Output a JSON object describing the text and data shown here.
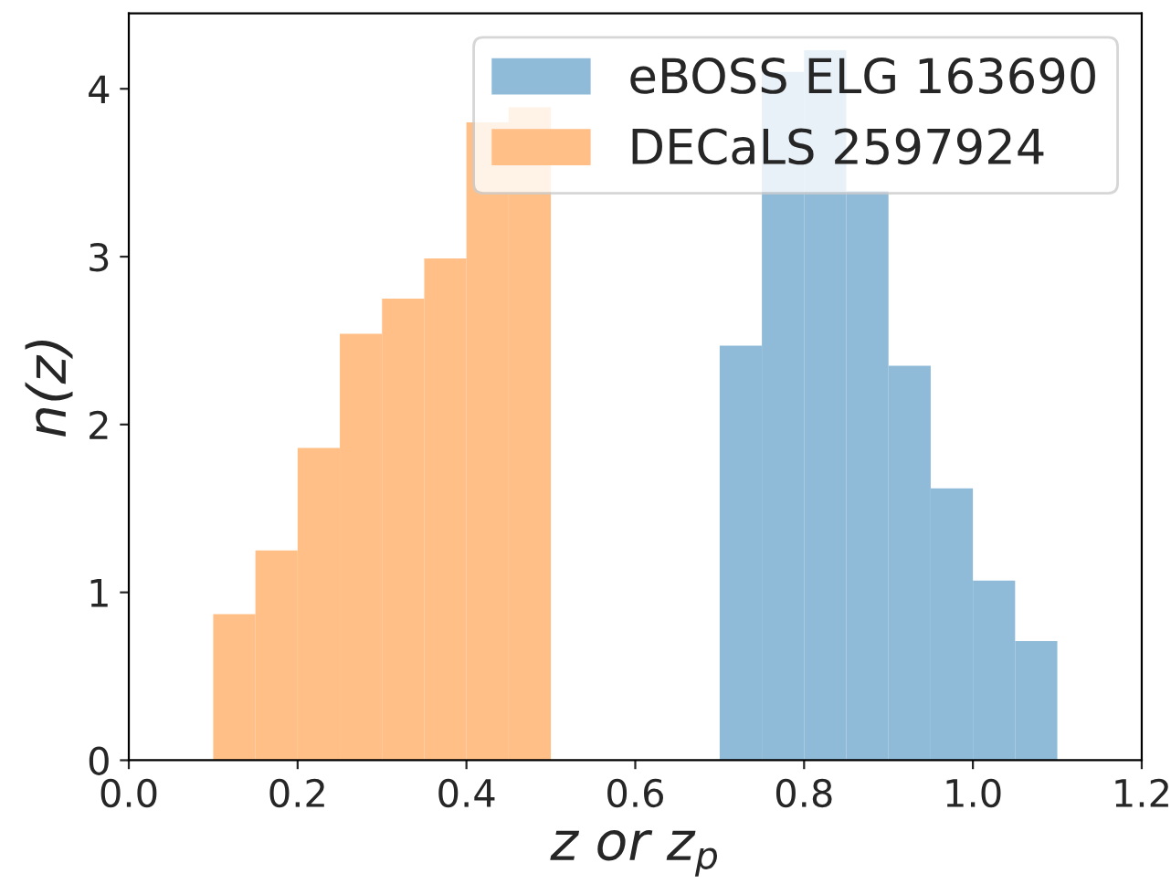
{
  "chart_data": {
    "type": "histogram",
    "xlabel": "z or z$_{p}$",
    "ylabel": "n(z)",
    "bins": [
      0.1,
      0.15,
      0.2,
      0.25,
      0.3,
      0.35,
      0.4,
      0.45,
      0.5,
      0.55,
      0.6,
      0.65,
      0.7,
      0.75,
      0.8,
      0.85,
      0.9,
      0.95,
      1.0,
      1.05,
      1.1
    ],
    "series": [
      {
        "name": "eBOSS ELG 163690",
        "color": "#8fbbd9",
        "values": [
          null,
          null,
          null,
          null,
          null,
          null,
          null,
          null,
          null,
          null,
          null,
          null,
          2.47,
          4.1,
          4.23,
          3.39,
          2.35,
          1.62,
          1.07,
          0.71
        ]
      },
      {
        "name": "DECaLS 2597924",
        "color": "#ffbf86",
        "values": [
          0.87,
          1.25,
          1.86,
          2.54,
          2.75,
          2.99,
          3.8,
          3.89,
          null,
          null,
          null,
          null,
          null,
          null,
          null,
          null,
          null,
          null,
          null,
          null
        ]
      }
    ],
    "xlim": [
      0,
      1.2
    ],
    "xticks": [
      {
        "value": 0,
        "label": "0.0"
      },
      {
        "value": 0.2,
        "label": "0.2"
      },
      {
        "value": 0.4,
        "label": "0.4"
      },
      {
        "value": 0.6,
        "label": "0.6"
      },
      {
        "value": 0.8,
        "label": "0.8"
      },
      {
        "value": 1.0,
        "label": "1.0"
      },
      {
        "value": 1.2,
        "label": "1.2"
      }
    ],
    "ylim": [
      0,
      4.45
    ],
    "yticks": [
      0,
      1,
      2,
      3,
      4
    ],
    "legend": "top right"
  }
}
